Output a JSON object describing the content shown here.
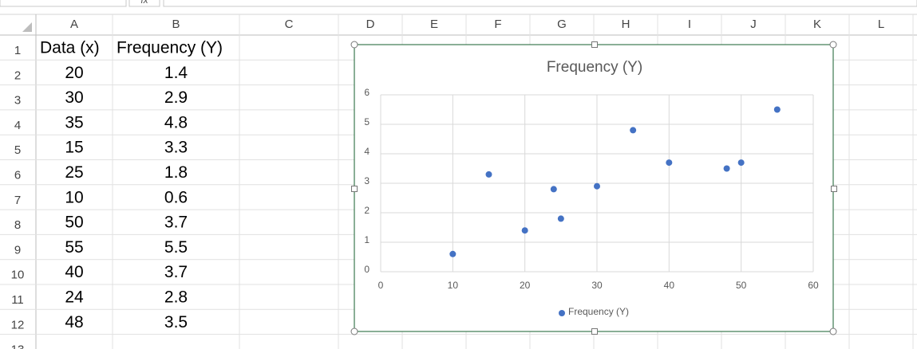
{
  "formula_bar": {
    "fx_label": "fx"
  },
  "sheet": {
    "columns": [
      "A",
      "B",
      "C",
      "D",
      "E",
      "F",
      "G",
      "H",
      "I",
      "J",
      "K",
      "L"
    ],
    "rows": [
      1,
      2,
      3,
      4,
      5,
      6,
      7,
      8,
      9,
      10,
      11,
      12,
      13
    ],
    "cells": [
      [
        "Data (x)",
        "Frequency (Y)"
      ],
      [
        20,
        1.4
      ],
      [
        30,
        2.9
      ],
      [
        35,
        4.8
      ],
      [
        15,
        3.3
      ],
      [
        25,
        1.8
      ],
      [
        10,
        0.6
      ],
      [
        50,
        3.7
      ],
      [
        55,
        5.5
      ],
      [
        40,
        3.7
      ],
      [
        24,
        2.8
      ],
      [
        48,
        3.5
      ]
    ]
  },
  "chart_data": {
    "type": "scatter",
    "title": "Frequency (Y)",
    "x": [
      20,
      30,
      35,
      15,
      25,
      10,
      50,
      55,
      40,
      24,
      48
    ],
    "series": [
      {
        "name": "Frequency (Y)",
        "color": "#4472c4",
        "values": [
          1.4,
          2.9,
          4.8,
          3.3,
          1.8,
          0.6,
          3.7,
          5.5,
          3.7,
          2.8,
          3.5
        ]
      }
    ],
    "xlim": [
      0,
      60
    ],
    "xticks": [
      0,
      10,
      20,
      30,
      40,
      50,
      60
    ],
    "ylim": [
      0,
      6
    ],
    "yticks": [
      0,
      1,
      2,
      3,
      4,
      5,
      6
    ],
    "grid": true,
    "legend": "bottom"
  }
}
